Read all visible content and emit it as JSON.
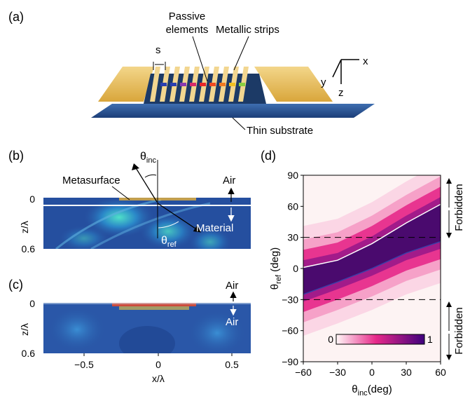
{
  "panels": {
    "a": {
      "label": "(a)",
      "s_label": "s",
      "passive_elements": [
        "Passive",
        "elements"
      ],
      "metallic_strips": "Metallic strips",
      "thin_substrate": "Thin substrate",
      "axes": {
        "x": "x",
        "y": "y",
        "z": "z"
      }
    },
    "b": {
      "label": "(b)",
      "theta_inc": "θ",
      "theta_inc_sub": "inc",
      "theta_ref": "θ",
      "theta_ref_sub": "ref",
      "metasurface": "Metasurface",
      "air": "Air",
      "material": "Material",
      "ylabel": "z/λ",
      "yticks": [
        "0",
        "0.6"
      ]
    },
    "c": {
      "label": "(c)",
      "air_top": "Air",
      "air_bottom": "Air",
      "ylabel": "z/λ",
      "yticks": [
        "0",
        "0.6"
      ],
      "xticks": [
        "−0.5",
        "0",
        "0.5"
      ],
      "xlabel": "x/λ"
    },
    "d": {
      "label": "(d)",
      "forbidden_top": "Forbidden",
      "forbidden_bottom": "Forbidden",
      "colorbar_min": "0",
      "colorbar_max": "1"
    }
  },
  "chart_data": {
    "type": "heatmap",
    "xlabel": "θinc (deg)",
    "xlabel_main": "θ",
    "xlabel_sub": "inc",
    "xlabel_unit": "(deg)",
    "ylabel": "θref (deg)",
    "ylabel_main": "θ",
    "ylabel_sub": "ref",
    "ylabel_unit": " (deg)",
    "xlim": [
      -60,
      60
    ],
    "ylim": [
      -90,
      90
    ],
    "xticks": [
      -60,
      -30,
      0,
      30,
      60
    ],
    "yticks": [
      90,
      60,
      30,
      0,
      -30,
      -60,
      -90
    ],
    "dashed_lines_y": [
      30,
      -30
    ],
    "colorbar_range": [
      0,
      1
    ],
    "colors": {
      "low": "#fdf3f3",
      "mid": "#e7298a",
      "high": "#3f007d",
      "white_curve": "#ffffff",
      "blue_curve": "#3a3fa8"
    },
    "white_curve": {
      "x": [
        -60,
        -30,
        0,
        30,
        60
      ],
      "y": [
        1,
        8,
        24,
        44,
        62
      ]
    },
    "blue_curve": {
      "x": [
        -60,
        -30,
        0,
        30,
        60
      ],
      "y": [
        -25,
        -13,
        0,
        15,
        26
      ]
    }
  }
}
